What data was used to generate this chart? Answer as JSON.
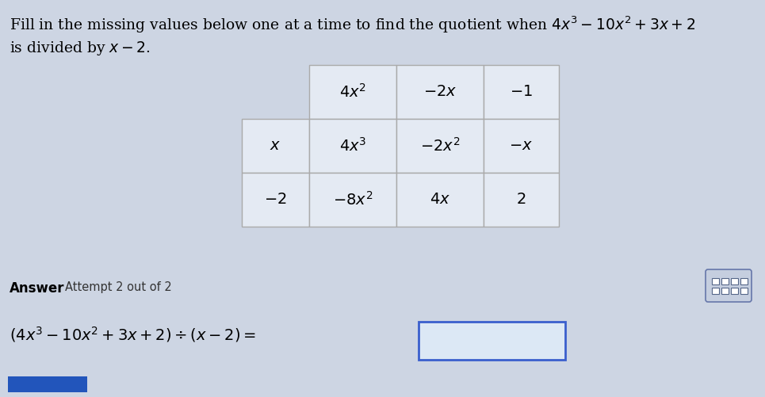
{
  "background_color": "#cdd5e3",
  "title_line1": "Fill in the missing values below one at a time to find the quotient when $4x^3 - 10x^2 + 3x + 2$",
  "title_line2": "is divided by $x - 2$.",
  "title_fontsize": 13.5,
  "table": {
    "header_row": [
      "$4x^2$",
      "$-2x$",
      "$-1$"
    ],
    "row1_label": "$x$",
    "row1_data": [
      "$4x^3$",
      "$-2x^2$",
      "$-x$"
    ],
    "row2_label": "$-2$",
    "row2_data": [
      "$-8x^2$",
      "$4x$",
      "$2$"
    ]
  },
  "answer_label": "Answer",
  "attempt_text": "Attempt 2 out of 2",
  "equation_text": "$(4x^3 - 10x^2 + 3x + 2) \\div (x - 2) =$",
  "cell_bg": "#e4eaf3",
  "cell_border": "#aaaaaa",
  "answer_box_edge": "#3a5fcd",
  "answer_box_face": "#dce8f5",
  "keyboard_bg": "#c5cedf",
  "keyboard_border": "#6677aa"
}
